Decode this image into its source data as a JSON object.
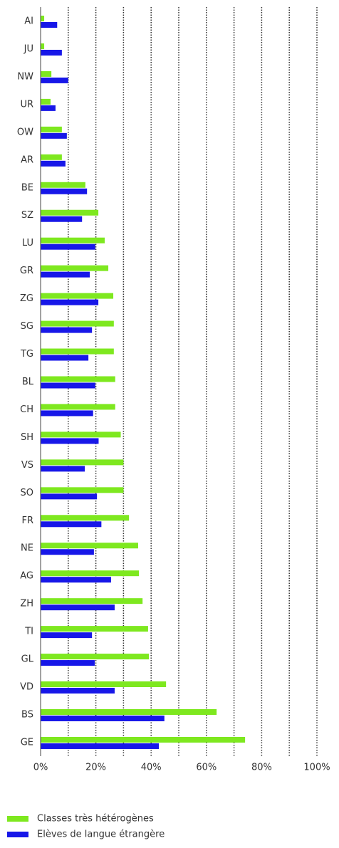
{
  "chart_data": {
    "type": "hbar",
    "categories": [
      "AI",
      "JU",
      "NW",
      "UR",
      "OW",
      "AR",
      "BE",
      "SZ",
      "LU",
      "GR",
      "ZG",
      "SG",
      "TG",
      "BL",
      "CH",
      "SH",
      "VS",
      "SO",
      "FR",
      "NE",
      "AG",
      "ZH",
      "TI",
      "GL",
      "VD",
      "BS",
      "GE"
    ],
    "series": [
      {
        "name": "Classes très hétérogènes",
        "color": "#7ee81f",
        "values": [
          1.3,
          1.3,
          3.9,
          3.6,
          7.7,
          7.7,
          16.2,
          20.9,
          23.2,
          24.5,
          26.3,
          26.5,
          26.5,
          27,
          27,
          29,
          30,
          30,
          32,
          35.3,
          35.6,
          36.9,
          38.9,
          39.2,
          45.4,
          63.7,
          74
        ]
      },
      {
        "name": "Elèves de langue étrangère",
        "color": "#1717e8",
        "values": [
          6,
          7.7,
          10,
          5.4,
          9.5,
          9,
          16.8,
          15,
          19.8,
          17.8,
          20.9,
          18.6,
          17.3,
          19.8,
          19,
          21,
          16,
          20.4,
          22,
          19.3,
          25.5,
          26.8,
          18.6,
          19.6,
          26.8,
          44.8,
          42.8
        ]
      }
    ],
    "xlim": [
      0,
      100
    ],
    "xticks": [
      {
        "value": 0,
        "label": "0%"
      },
      {
        "value": 20,
        "label": "20%"
      },
      {
        "value": 40,
        "label": "40%"
      },
      {
        "value": 60,
        "label": "60%"
      },
      {
        "value": 80,
        "label": "80%"
      },
      {
        "value": 100,
        "label": "100%"
      }
    ],
    "minor_xticks": [
      10,
      30,
      50,
      70,
      90
    ],
    "grid": true,
    "legend": "bottom"
  }
}
